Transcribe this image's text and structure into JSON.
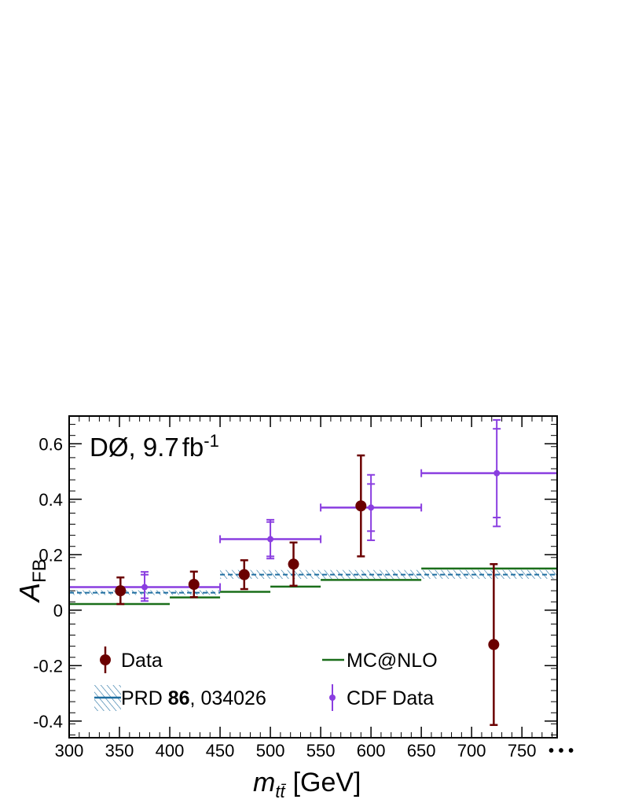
{
  "chart_data": {
    "type": "scatter",
    "title": "DØ, 9.7 fb⁻¹",
    "experiment": "DØ",
    "luminosity_value": "9.7",
    "luminosity_unit": "fb",
    "luminosity_exp": "-1",
    "xlabel": {
      "var": "m",
      "sub": "tt̄",
      "unit": "[GeV]"
    },
    "ylabel": {
      "var": "A",
      "sub": "FB"
    },
    "xlim": [
      300,
      785
    ],
    "ylim": [
      -0.46,
      0.7
    ],
    "x_ticks": [
      300,
      350,
      400,
      450,
      500,
      550,
      600,
      650,
      700,
      750
    ],
    "x_tick_labels": [
      "300",
      "350",
      "400",
      "450",
      "500",
      "550",
      "600",
      "650",
      "700",
      "750"
    ],
    "x_overflow_label": "• • •",
    "y_ticks": [
      -0.4,
      -0.2,
      0,
      0.2,
      0.4,
      0.6
    ],
    "y_tick_labels": [
      "-0.4",
      "-0.2",
      "0",
      "0.2",
      "0.4",
      "0.6"
    ],
    "legend": {
      "data": "Data",
      "prd_prefix": "PRD ",
      "prd_bold": "86",
      "prd_suffix": ", 034026",
      "mcnlo": "MC@NLO",
      "cdf": "CDF Data"
    },
    "colors": {
      "data": "#6b0000",
      "cdf": "#8a3ee0",
      "mcnlo": "#1a6e1a",
      "prd": "#1f6ea0",
      "axis": "#000000"
    },
    "series": [
      {
        "name": "Data",
        "points": [
          {
            "x": 351,
            "y": 0.07,
            "err_low": 0.048,
            "err_high": 0.048
          },
          {
            "x": 424,
            "y": 0.093,
            "err_low": 0.046,
            "err_high": 0.046
          },
          {
            "x": 474,
            "y": 0.128,
            "err_low": 0.052,
            "err_high": 0.052
          },
          {
            "x": 523,
            "y": 0.166,
            "err_low": 0.078,
            "err_high": 0.078
          },
          {
            "x": 590,
            "y": 0.376,
            "err_low": 0.182,
            "err_high": 0.182
          },
          {
            "x": 722,
            "y": -0.124,
            "err_low": 0.29,
            "err_high": 0.29
          }
        ]
      },
      {
        "name": "CDF Data",
        "points": [
          {
            "x": 375,
            "y": 0.083,
            "xlow": 300,
            "xhigh": 450,
            "err_low": 0.05,
            "err_high": 0.055,
            "err2_low": 0.04,
            "err2_high": 0.045
          },
          {
            "x": 500,
            "y": 0.256,
            "xlow": 450,
            "xhigh": 550,
            "err_low": 0.07,
            "err_high": 0.07,
            "err2_low": 0.062,
            "err2_high": 0.062
          },
          {
            "x": 600,
            "y": 0.37,
            "xlow": 550,
            "xhigh": 650,
            "err_low": 0.118,
            "err_high": 0.118,
            "err2_low": 0.085,
            "err2_high": 0.085
          },
          {
            "x": 725,
            "y": 0.494,
            "xlow": 650,
            "xhigh": 785,
            "err_low": 0.192,
            "err_high": 0.192,
            "err2_low": 0.16,
            "err2_high": 0.16
          }
        ]
      },
      {
        "name": "MC@NLO",
        "bins": [
          {
            "xlow": 300,
            "xhigh": 400,
            "y": 0.022
          },
          {
            "xlow": 400,
            "xhigh": 450,
            "y": 0.046
          },
          {
            "xlow": 450,
            "xhigh": 500,
            "y": 0.066
          },
          {
            "xlow": 500,
            "xhigh": 550,
            "y": 0.085
          },
          {
            "xlow": 550,
            "xhigh": 650,
            "y": 0.109
          },
          {
            "xlow": 650,
            "xhigh": 785,
            "y": 0.15
          }
        ]
      },
      {
        "name": "PRD 86, 034026",
        "bins": [
          {
            "xlow": 300,
            "xhigh": 450,
            "y": 0.063,
            "band_low": 0.055,
            "band_high": 0.072
          },
          {
            "xlow": 450,
            "xhigh": 785,
            "y": 0.128,
            "band_low": 0.113,
            "band_high": 0.145
          }
        ]
      }
    ]
  }
}
